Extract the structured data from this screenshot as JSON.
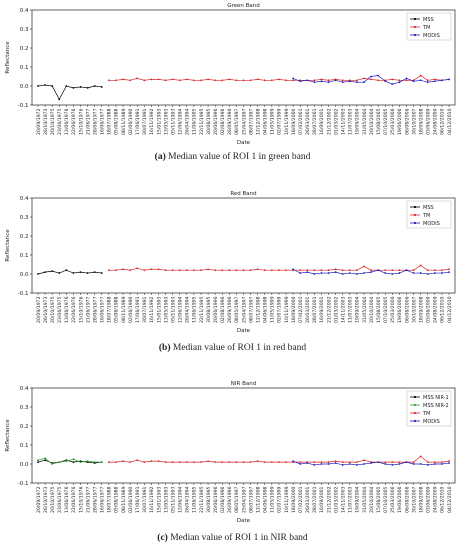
{
  "chart_data": [
    {
      "type": "line",
      "title": "Green Band",
      "xlabel": "Date",
      "ylabel": "Reflectance",
      "ylim": [
        -0.1,
        0.4
      ],
      "yticks": [
        "-0.1",
        "0.0",
        "0.1",
        "0.2",
        "0.3",
        "0.4"
      ],
      "grid": false,
      "legend_position": "top-right",
      "caption_label": "(a)",
      "caption_text": "Median value of ROI 1 in green band",
      "x_dates": [
        "20/09/1972",
        "26/10/1973",
        "20/10/1975",
        "23/06/1975",
        "13/06/1976",
        "22/06/1976",
        "15/10/1976",
        "21/06/1977",
        "28/06/1977",
        "16/06/1977",
        "18/07/1988",
        "05/08/1988",
        "08/11/1989",
        "02/06/1990",
        "17/06/1991",
        "30/07/1991",
        "16/11/1992",
        "15/01/1993",
        "13/05/1993",
        "05/11/1993",
        "12/06/1994",
        "26/04/1994",
        "11/06/1995",
        "22/11/1995",
        "30/08/1995",
        "20/06/1996",
        "02/08/1996",
        "26/09/1996",
        "08/05/1997",
        "25/04/1997",
        "08/07/1997",
        "12/12/1998",
        "04/06/1998",
        "11/05/1999",
        "02/07/1999",
        "10/11/1999",
        "18/09/2000",
        "07/02/2001",
        "26/03/2001",
        "28/07/2001",
        "16/09/2001",
        "21/12/2002",
        "01/03/2002",
        "14/11/2003",
        "11/07/2003",
        "19/09/2004",
        "31/05/2004",
        "20/10/2004",
        "15/08/2005",
        "07/10/2005",
        "25/03/2006",
        "19/06/2006",
        "06/08/2006",
        "30/10/2007",
        "18/09/2008",
        "03/06/2009",
        "24/08/2009",
        "06/12/2010",
        "04/12/2010"
      ],
      "series": [
        {
          "name": "MSS",
          "color": "#000000",
          "x": [
            0,
            1,
            2,
            3,
            4,
            5,
            6,
            7,
            8,
            9
          ],
          "values": [
            0.0,
            0.005,
            0.0,
            -0.07,
            0.0,
            -0.01,
            -0.005,
            -0.01,
            0.0,
            -0.005
          ]
        },
        {
          "name": "TM",
          "color": "#d62728",
          "x": [
            10,
            11,
            12,
            13,
            14,
            15,
            16,
            17,
            18,
            19,
            20,
            21,
            22,
            23,
            24,
            25,
            26,
            27,
            28,
            29,
            30,
            31,
            32,
            33,
            34,
            35,
            36,
            37,
            38,
            39,
            40,
            41,
            42,
            43,
            44,
            45,
            46,
            47,
            48,
            49,
            50,
            51,
            52,
            53,
            54,
            55,
            56,
            57,
            58
          ],
          "values": [
            0.03,
            0.03,
            0.035,
            0.03,
            0.04,
            0.03,
            0.035,
            0.035,
            0.03,
            0.035,
            0.03,
            0.035,
            0.03,
            0.03,
            0.035,
            0.03,
            0.03,
            0.035,
            0.03,
            0.03,
            0.03,
            0.035,
            0.03,
            0.03,
            0.035,
            0.03,
            0.03,
            0.03,
            0.03,
            0.03,
            0.035,
            0.03,
            0.035,
            0.03,
            0.03,
            0.03,
            0.04,
            0.035,
            0.03,
            0.03,
            0.035,
            0.03,
            0.03,
            0.03,
            0.055,
            0.03,
            0.035,
            0.03,
            0.035
          ]
        },
        {
          "name": "MODIS",
          "color": "#1f1fbf",
          "x": [
            36,
            37,
            38,
            39,
            40,
            41,
            42,
            43,
            44,
            45,
            46,
            47,
            48,
            49,
            50,
            51,
            52,
            53,
            54,
            55,
            56,
            57,
            58
          ],
          "values": [
            0.04,
            0.025,
            0.03,
            0.02,
            0.025,
            0.02,
            0.03,
            0.02,
            0.025,
            0.02,
            0.02,
            0.05,
            0.055,
            0.025,
            0.01,
            0.02,
            0.04,
            0.025,
            0.03,
            0.02,
            0.025,
            0.03,
            0.035
          ]
        }
      ]
    },
    {
      "type": "line",
      "title": "Red Band",
      "xlabel": "Date",
      "ylabel": "Reflectance",
      "ylim": [
        -0.1,
        0.4
      ],
      "yticks": [
        "-0.1",
        "0.0",
        "0.1",
        "0.2",
        "0.3",
        "0.4"
      ],
      "grid": false,
      "legend_position": "top-right",
      "caption_label": "(b)",
      "caption_text": "Median value of ROI 1 in red band",
      "x_dates": [
        "20/09/1972",
        "26/10/1973",
        "20/10/1975",
        "23/06/1975",
        "13/06/1976",
        "22/06/1976",
        "15/10/1976",
        "21/06/1977",
        "28/06/1977",
        "16/06/1977",
        "18/07/1988",
        "05/08/1988",
        "08/11/1989",
        "02/06/1990",
        "17/06/1991",
        "30/07/1991",
        "16/11/1992",
        "15/01/1993",
        "13/05/1993",
        "05/11/1993",
        "12/06/1994",
        "26/04/1994",
        "11/06/1995",
        "22/11/1995",
        "30/08/1995",
        "20/06/1996",
        "02/08/1996",
        "26/09/1996",
        "08/05/1997",
        "25/04/1997",
        "08/07/1997",
        "12/12/1998",
        "04/06/1998",
        "11/05/1999",
        "02/07/1999",
        "10/11/1999",
        "18/09/2000",
        "07/02/2001",
        "26/03/2001",
        "28/07/2001",
        "16/09/2001",
        "21/12/2002",
        "01/03/2002",
        "14/11/2003",
        "11/07/2003",
        "19/09/2004",
        "31/05/2004",
        "20/10/2004",
        "15/08/2005",
        "07/10/2005",
        "25/03/2006",
        "19/06/2006",
        "06/08/2006",
        "30/10/2007",
        "18/09/2008",
        "03/06/2009",
        "24/08/2009",
        "06/12/2010",
        "04/12/2010"
      ],
      "series": [
        {
          "name": "MSS",
          "color": "#000000",
          "x": [
            0,
            1,
            2,
            3,
            4,
            5,
            6,
            7,
            8,
            9
          ],
          "values": [
            0.0,
            0.01,
            0.015,
            0.005,
            0.02,
            0.005,
            0.01,
            0.005,
            0.01,
            0.005
          ]
        },
        {
          "name": "TM",
          "color": "#d62728",
          "x": [
            10,
            11,
            12,
            13,
            14,
            15,
            16,
            17,
            18,
            19,
            20,
            21,
            22,
            23,
            24,
            25,
            26,
            27,
            28,
            29,
            30,
            31,
            32,
            33,
            34,
            35,
            36,
            37,
            38,
            39,
            40,
            41,
            42,
            43,
            44,
            45,
            46,
            47,
            48,
            49,
            50,
            51,
            52,
            53,
            54,
            55,
            56,
            57,
            58
          ],
          "values": [
            0.02,
            0.02,
            0.025,
            0.02,
            0.03,
            0.02,
            0.025,
            0.025,
            0.02,
            0.02,
            0.02,
            0.02,
            0.02,
            0.02,
            0.025,
            0.02,
            0.02,
            0.02,
            0.02,
            0.02,
            0.02,
            0.025,
            0.02,
            0.02,
            0.02,
            0.02,
            0.02,
            0.02,
            0.02,
            0.02,
            0.02,
            0.02,
            0.025,
            0.02,
            0.02,
            0.02,
            0.04,
            0.02,
            0.02,
            0.02,
            0.02,
            0.02,
            0.02,
            0.02,
            0.045,
            0.02,
            0.02,
            0.02,
            0.025
          ]
        },
        {
          "name": "MODIS",
          "color": "#1f1fbf",
          "x": [
            36,
            37,
            38,
            39,
            40,
            41,
            42,
            43,
            44,
            45,
            46,
            47,
            48,
            49,
            50,
            51,
            52,
            53,
            54,
            55,
            56,
            57,
            58
          ],
          "values": [
            0.025,
            0.005,
            0.01,
            0.0,
            0.005,
            0.005,
            0.01,
            0.0,
            0.005,
            0.0,
            0.005,
            0.01,
            0.02,
            0.005,
            0.0,
            0.005,
            0.02,
            0.005,
            0.005,
            0.0,
            0.005,
            0.005,
            0.01
          ]
        }
      ]
    },
    {
      "type": "line",
      "title": "NIR Band",
      "xlabel": "Date",
      "ylabel": "Reflectance",
      "ylim": [
        -0.1,
        0.4
      ],
      "yticks": [
        "-0.1",
        "0.0",
        "0.1",
        "0.2",
        "0.3",
        "0.4"
      ],
      "grid": false,
      "legend_position": "top-right",
      "caption_label": "(c)",
      "caption_text": "Median value of ROI 1 in NIR band",
      "x_dates": [
        "20/09/1972",
        "26/10/1973",
        "20/10/1975",
        "23/06/1975",
        "13/06/1976",
        "22/06/1976",
        "15/10/1976",
        "21/06/1977",
        "28/06/1977",
        "16/06/1977",
        "18/07/1988",
        "05/08/1988",
        "08/11/1989",
        "02/06/1990",
        "17/06/1991",
        "30/07/1991",
        "16/11/1992",
        "15/01/1993",
        "13/05/1993",
        "05/11/1993",
        "12/06/1994",
        "26/04/1994",
        "11/06/1995",
        "22/11/1995",
        "30/08/1995",
        "20/06/1996",
        "02/08/1996",
        "26/09/1996",
        "08/05/1997",
        "25/04/1997",
        "08/07/1997",
        "12/12/1998",
        "04/06/1998",
        "11/05/1999",
        "02/07/1999",
        "10/11/1999",
        "18/09/2000",
        "07/02/2001",
        "26/03/2001",
        "28/07/2001",
        "16/09/2001",
        "21/12/2002",
        "01/03/2002",
        "14/11/2003",
        "11/07/2003",
        "19/09/2004",
        "31/05/2004",
        "20/10/2004",
        "15/08/2005",
        "07/10/2005",
        "25/03/2006",
        "19/06/2006",
        "06/08/2006",
        "30/10/2007",
        "18/09/2008",
        "03/06/2009",
        "24/08/2009",
        "06/12/2010",
        "04/12/2010"
      ],
      "series": [
        {
          "name": "MSS NIR-1",
          "color": "#000000",
          "x": [
            0,
            1,
            2,
            3,
            4,
            5,
            6,
            7,
            8,
            9
          ],
          "values": [
            0.01,
            0.02,
            0.005,
            0.01,
            0.02,
            0.01,
            0.015,
            0.01,
            0.005,
            0.01
          ]
        },
        {
          "name": "MSS NIR-2",
          "color": "#2ca02c",
          "x": [
            0,
            1,
            2,
            3,
            4,
            5,
            6,
            7,
            8,
            9
          ],
          "values": [
            0.02,
            0.03,
            0.0,
            0.01,
            0.015,
            0.025,
            0.01,
            0.015,
            0.01,
            0.01
          ]
        },
        {
          "name": "TM",
          "color": "#d62728",
          "x": [
            10,
            11,
            12,
            13,
            14,
            15,
            16,
            17,
            18,
            19,
            20,
            21,
            22,
            23,
            24,
            25,
            26,
            27,
            28,
            29,
            30,
            31,
            32,
            33,
            34,
            35,
            36,
            37,
            38,
            39,
            40,
            41,
            42,
            43,
            44,
            45,
            46,
            47,
            48,
            49,
            50,
            51,
            52,
            53,
            54,
            55,
            56,
            57,
            58
          ],
          "values": [
            0.01,
            0.01,
            0.015,
            0.01,
            0.02,
            0.01,
            0.015,
            0.015,
            0.01,
            0.01,
            0.01,
            0.01,
            0.01,
            0.01,
            0.015,
            0.01,
            0.01,
            0.01,
            0.01,
            0.01,
            0.01,
            0.015,
            0.01,
            0.01,
            0.01,
            0.01,
            0.01,
            0.01,
            0.01,
            0.01,
            0.01,
            0.01,
            0.015,
            0.01,
            0.01,
            0.01,
            0.02,
            0.01,
            0.01,
            0.01,
            0.01,
            0.01,
            0.01,
            0.01,
            0.04,
            0.01,
            0.01,
            0.01,
            0.015
          ]
        },
        {
          "name": "MODIS",
          "color": "#1f1fbf",
          "x": [
            36,
            37,
            38,
            39,
            40,
            41,
            42,
            43,
            44,
            45,
            46,
            47,
            48,
            49,
            50,
            51,
            52,
            53,
            54,
            55,
            56,
            57,
            58
          ],
          "values": [
            0.015,
            0.0,
            0.005,
            -0.005,
            0.0,
            0.0,
            0.005,
            -0.005,
            0.0,
            -0.005,
            0.0,
            0.005,
            0.01,
            0.0,
            -0.005,
            0.0,
            0.01,
            0.0,
            0.0,
            -0.005,
            0.0,
            0.0,
            0.005
          ]
        }
      ]
    }
  ]
}
